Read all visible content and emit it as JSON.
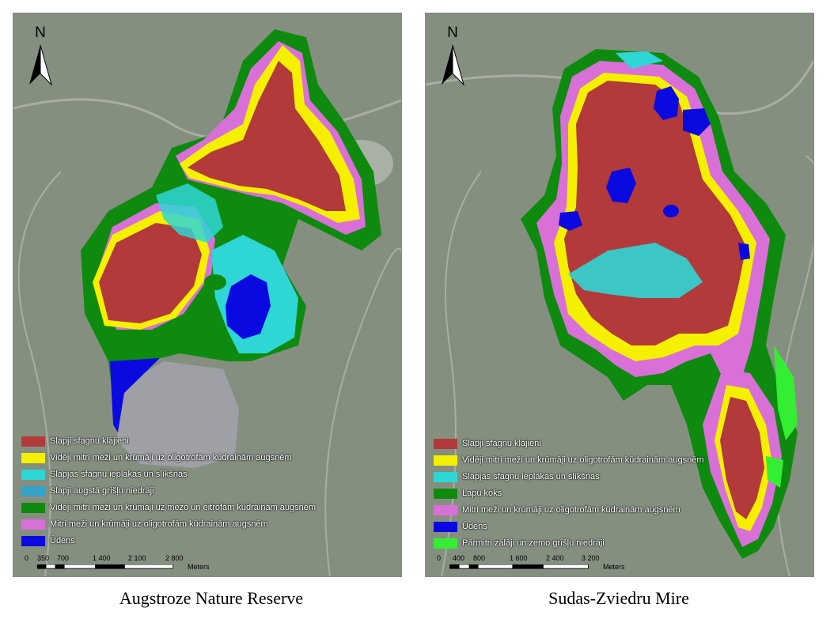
{
  "panels": [
    {
      "caption": "Augstroze Nature Reserve",
      "north_label": "N",
      "legend": [
        {
          "label": "Slapji sfagnu klājieni",
          "color": "#b23a3a"
        },
        {
          "label": "Vidēji mitri meži un krūmāji uz oligotrofām kūdrainām augsnēm",
          "color": "#f5f000"
        },
        {
          "label": "Slapjas sfagnu ieplakas un slīkšņas",
          "color": "#2fd6d6"
        },
        {
          "label": "Slapji augstā grīšļu niedrāji",
          "color": "#35a2c8"
        },
        {
          "label": "Vidēji mitri meži un krūmāji uz mezo un eitrofām kūdrainām augsnēm",
          "color": "#0e8a0e"
        },
        {
          "label": "Mitri meži un krūmāji uz oligotrofām kūdrainām augsnēm",
          "color": "#d870d8"
        },
        {
          "label": "Ūdens",
          "color": "#0a0ae0"
        }
      ],
      "scale": {
        "ticks": [
          "0",
          "350",
          "700",
          "1 400",
          "2 100",
          "2 800"
        ],
        "unit": "Meters"
      }
    },
    {
      "caption": "Sudas-Zviedru Mire",
      "north_label": "N",
      "legend": [
        {
          "label": "Slapji sfagnu klājieni",
          "color": "#b23a3a"
        },
        {
          "label": "Vidēji mitri meži un krūmāji uz oligotrofām kūdrainām augsnēm",
          "color": "#f5f000"
        },
        {
          "label": "Slapjas sfagnu ieplakas un slīkšņas",
          "color": "#2fd6d6"
        },
        {
          "label": "Lapu koks",
          "color": "#0e8a0e"
        },
        {
          "label": "Mitri meži un krūmāji uz oligotrofām kūdrainām augsnēm",
          "color": "#d870d8"
        },
        {
          "label": "Ūdens",
          "color": "#0a0ae0"
        },
        {
          "label": "Pārmitri zālāji un zemo grīšļu niedrāji",
          "color": "#33ee33"
        }
      ],
      "scale": {
        "ticks": [
          "0",
          "400",
          "800",
          "1 600",
          "2 400",
          "3 200"
        ],
        "unit": "Meters"
      }
    }
  ]
}
